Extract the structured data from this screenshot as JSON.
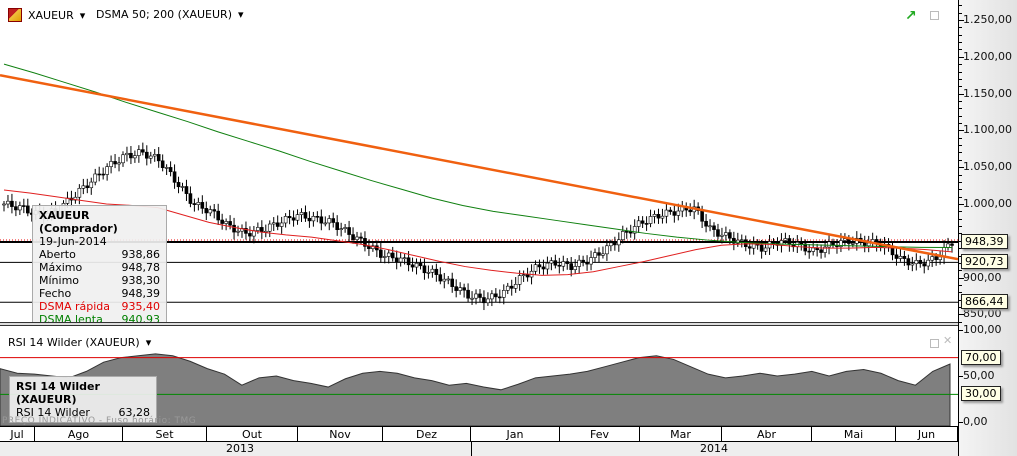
{
  "header": {
    "symbol": "XAUEUR",
    "indicator": "DSMA 50; 200 (XAUEUR)"
  },
  "tooltip": {
    "title": "XAUEUR (Comprador)",
    "date": "19-Jun-2014",
    "rows": [
      {
        "label": "Aberto",
        "value": "938,86",
        "color": "#000"
      },
      {
        "label": "Máximo",
        "value": "948,78",
        "color": "#000"
      },
      {
        "label": "Mínimo",
        "value": "938,30",
        "color": "#000"
      },
      {
        "label": "Fecho",
        "value": "948,39",
        "color": "#000"
      },
      {
        "label": "DSMA rápida",
        "value": "935,40",
        "color": "#e00000"
      },
      {
        "label": "DSMA lenta",
        "value": "940,93",
        "color": "#008000"
      }
    ]
  },
  "rsi_panel": {
    "title": "RSI 14 Wilder (XAUEUR)",
    "tooltip_title": "RSI 14 Wilder (XAUEUR)",
    "tooltip_label": "RSI 14 Wilder",
    "tooltip_value": "63,28",
    "watermark": "PREÇO INDICATIVO - Fuso horário: TMG"
  },
  "price_axis": [
    "1.250,00",
    "1.200,00",
    "1.150,00",
    "1.100,00",
    "1.050,00",
    "1.000,00",
    "900,00",
    "850,00"
  ],
  "price_labels": [
    "948,39",
    "920,73",
    "866,44"
  ],
  "rsi_axis": [
    "100,00",
    "50,00",
    "0,00"
  ],
  "rsi_labels": [
    "70,00",
    "30,00"
  ],
  "months": [
    "Jul",
    "Ago",
    "Set",
    "Out",
    "Nov",
    "Dez",
    "Jan",
    "Fev",
    "Mar",
    "Abr",
    "Mai",
    "Jun"
  ],
  "years": [
    "2013",
    "2014"
  ],
  "chart_data": {
    "type": "candlestick",
    "ylim": [
      835,
      1275
    ],
    "weekly_close": [
      1000,
      995,
      985,
      990,
      1010,
      1030,
      1050,
      1065,
      1070,
      1060,
      1030,
      1000,
      990,
      970,
      960,
      965,
      975,
      985,
      980,
      975,
      960,
      945,
      930,
      925,
      915,
      905,
      890,
      875,
      870,
      880,
      900,
      915,
      920,
      915,
      925,
      940,
      960,
      975,
      985,
      990,
      995,
      965,
      955,
      945,
      940,
      950,
      945,
      935,
      945,
      950,
      948,
      945,
      925,
      918,
      925,
      948
    ],
    "sma50": [
      1019,
      1015,
      1010,
      1005,
      1000,
      998,
      995,
      985,
      975,
      968,
      962,
      958,
      955,
      950,
      945,
      938,
      930,
      922,
      915,
      910,
      906,
      903,
      904,
      908,
      915,
      922,
      930,
      938,
      944,
      946,
      945,
      942,
      940,
      940,
      941,
      940,
      938,
      935
    ],
    "sma200": [
      1190,
      1178,
      1165,
      1152,
      1138,
      1125,
      1112,
      1098,
      1085,
      1072,
      1058,
      1045,
      1032,
      1020,
      1008,
      998,
      990,
      984,
      978,
      972,
      966,
      960,
      955,
      951,
      948,
      946,
      945,
      944,
      943,
      942,
      941,
      940.9
    ],
    "trendline": [
      1175,
      925
    ],
    "hlines": [
      948.39,
      920.73,
      866.44
    ],
    "rsi": [
      58,
      53,
      52,
      50,
      48,
      55,
      65,
      70,
      72,
      74,
      72,
      66,
      58,
      52,
      40,
      48,
      50,
      45,
      42,
      38,
      47,
      53,
      55,
      53,
      48,
      45,
      40,
      42,
      38,
      35,
      41,
      48,
      50,
      52,
      55,
      60,
      65,
      70,
      72,
      68,
      60,
      52,
      48,
      50,
      53,
      50,
      52,
      55,
      50,
      55,
      57,
      53,
      45,
      40,
      55,
      63
    ],
    "rsi_levels": [
      70,
      30
    ]
  }
}
